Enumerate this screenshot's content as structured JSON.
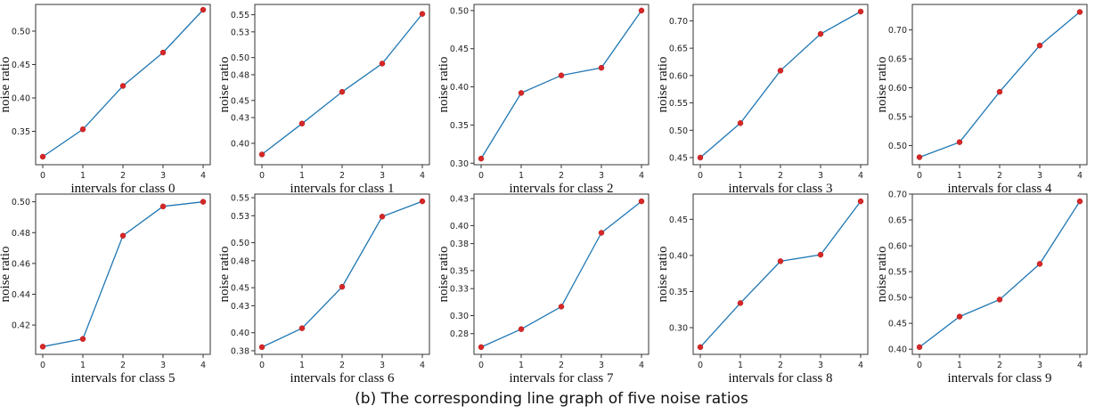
{
  "caption": "(b) The corresponding line graph of five noise ratios",
  "colors": {
    "line": "#1f77b4",
    "marker": "#d62728"
  },
  "chart_data": [
    {
      "type": "line",
      "xlabel": "intervals for class 0",
      "ylabel": "noise ratio",
      "x": [
        0,
        1,
        2,
        3,
        4
      ],
      "values": [
        0.312,
        0.353,
        0.418,
        0.468,
        0.532
      ],
      "ylim": [
        0.3,
        0.54
      ],
      "yticks": [
        "0.35",
        "0.40",
        "0.45",
        "0.50"
      ]
    },
    {
      "type": "line",
      "xlabel": "intervals for class 1",
      "ylabel": "noise ratio",
      "x": [
        0,
        1,
        2,
        3,
        4
      ],
      "values": [
        0.387,
        0.423,
        0.46,
        0.493,
        0.551
      ],
      "ylim": [
        0.375,
        0.562
      ],
      "yticks": [
        "0.40",
        "0.43",
        "0.45",
        "0.48",
        "0.50",
        "0.53",
        "0.55"
      ]
    },
    {
      "type": "line",
      "xlabel": "intervals for class 2",
      "ylabel": "noise ratio",
      "x": [
        0,
        1,
        2,
        3,
        4
      ],
      "values": [
        0.306,
        0.392,
        0.415,
        0.425,
        0.5
      ],
      "ylim": [
        0.298,
        0.508
      ],
      "yticks": [
        "0.30",
        "0.35",
        "0.40",
        "0.45",
        "0.50"
      ]
    },
    {
      "type": "line",
      "xlabel": "intervals for class 3",
      "ylabel": "noise ratio",
      "x": [
        0,
        1,
        2,
        3,
        4
      ],
      "values": [
        0.45,
        0.513,
        0.609,
        0.676,
        0.717
      ],
      "ylim": [
        0.437,
        0.73
      ],
      "yticks": [
        "0.45",
        "0.50",
        "0.55",
        "0.60",
        "0.65",
        "0.70"
      ]
    },
    {
      "type": "line",
      "xlabel": "intervals for class 4",
      "ylabel": "noise ratio",
      "x": [
        0,
        1,
        2,
        3,
        4
      ],
      "values": [
        0.48,
        0.506,
        0.593,
        0.673,
        0.731
      ],
      "ylim": [
        0.467,
        0.744
      ],
      "yticks": [
        "0.50",
        "0.55",
        "0.60",
        "0.65",
        "0.70"
      ]
    },
    {
      "type": "line",
      "xlabel": "intervals for class 5",
      "ylabel": "noise ratio",
      "x": [
        0,
        1,
        2,
        3,
        4
      ],
      "values": [
        0.406,
        0.411,
        0.478,
        0.497,
        0.5
      ],
      "ylim": [
        0.401,
        0.505
      ],
      "yticks": [
        "0.42",
        "0.44",
        "0.46",
        "0.48",
        "0.50"
      ]
    },
    {
      "type": "line",
      "xlabel": "intervals for class 6",
      "ylabel": "noise ratio",
      "x": [
        0,
        1,
        2,
        3,
        4
      ],
      "values": [
        0.384,
        0.405,
        0.451,
        0.529,
        0.546
      ],
      "ylim": [
        0.376,
        0.554
      ],
      "yticks": [
        "0.38",
        "0.40",
        "0.43",
        "0.45",
        "0.48",
        "0.50",
        "0.53",
        "0.55"
      ]
    },
    {
      "type": "line",
      "xlabel": "intervals for class 7",
      "ylabel": "noise ratio",
      "x": [
        0,
        1,
        2,
        3,
        4
      ],
      "values": [
        0.265,
        0.285,
        0.31,
        0.392,
        0.427
      ],
      "ylim": [
        0.257,
        0.435
      ],
      "yticks": [
        "0.28",
        "0.30",
        "0.33",
        "0.35",
        "0.38",
        "0.40",
        "0.43"
      ]
    },
    {
      "type": "line",
      "xlabel": "intervals for class 8",
      "ylabel": "noise ratio",
      "x": [
        0,
        1,
        2,
        3,
        4
      ],
      "values": [
        0.273,
        0.334,
        0.392,
        0.401,
        0.475
      ],
      "ylim": [
        0.263,
        0.485
      ],
      "yticks": [
        "0.30",
        "0.35",
        "0.40",
        "0.45"
      ]
    },
    {
      "type": "line",
      "xlabel": "intervals for class 9",
      "ylabel": "noise ratio",
      "x": [
        0,
        1,
        2,
        3,
        4
      ],
      "values": [
        0.404,
        0.463,
        0.496,
        0.565,
        0.686
      ],
      "ylim": [
        0.39,
        0.7
      ],
      "yticks": [
        "0.40",
        "0.45",
        "0.50",
        "0.55",
        "0.60",
        "0.65",
        "0.70"
      ]
    }
  ]
}
